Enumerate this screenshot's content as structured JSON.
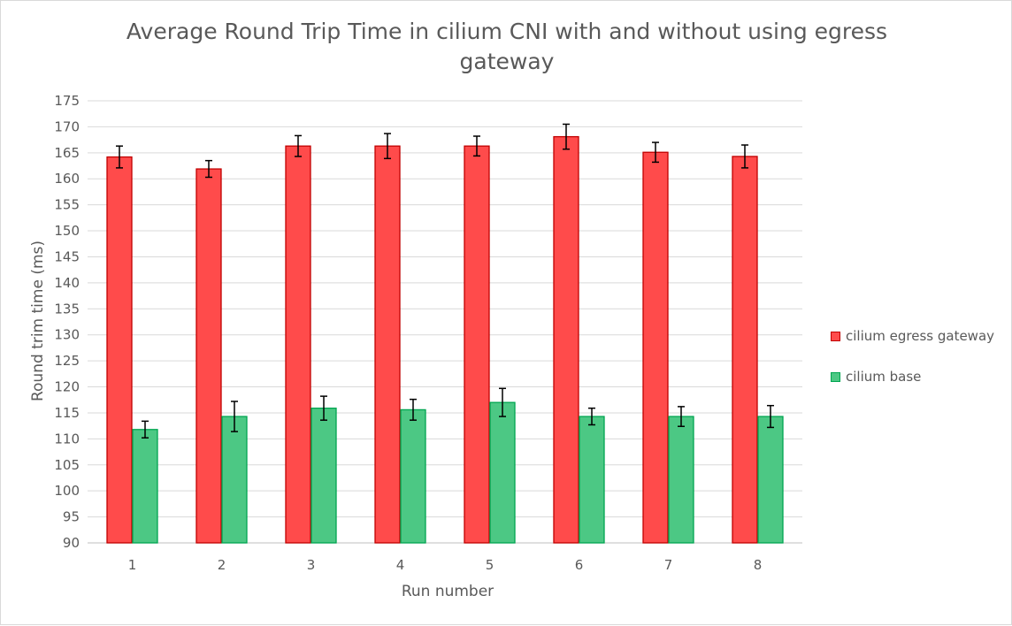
{
  "chart_data": {
    "type": "bar",
    "title": "Average Round Trip Time in cilium CNI with and without using egress gateway",
    "xlabel": "Run number",
    "ylabel": "Round trim time (ms)",
    "categories": [
      "1",
      "2",
      "3",
      "4",
      "5",
      "6",
      "7",
      "8"
    ],
    "ylim": [
      90,
      175
    ],
    "yticks": [
      90,
      95,
      100,
      105,
      110,
      115,
      120,
      125,
      130,
      135,
      140,
      145,
      150,
      155,
      160,
      165,
      170,
      175
    ],
    "grid": true,
    "legend_position": "right",
    "series": [
      {
        "name": "cilium egress gateway",
        "color": "#ff4b4b",
        "stroke": "#c00000",
        "values": [
          164.2,
          161.9,
          166.3,
          166.3,
          166.3,
          168.1,
          165.1,
          164.3
        ],
        "error": [
          2.1,
          1.6,
          2.0,
          2.4,
          1.9,
          2.4,
          1.9,
          2.2
        ]
      },
      {
        "name": "cilium base",
        "color": "#4cc884",
        "stroke": "#00a550",
        "values": [
          111.8,
          114.3,
          115.9,
          115.6,
          117.0,
          114.3,
          114.3,
          114.3
        ],
        "error": [
          1.6,
          2.9,
          2.3,
          2.0,
          2.7,
          1.6,
          1.9,
          2.1
        ]
      }
    ]
  }
}
